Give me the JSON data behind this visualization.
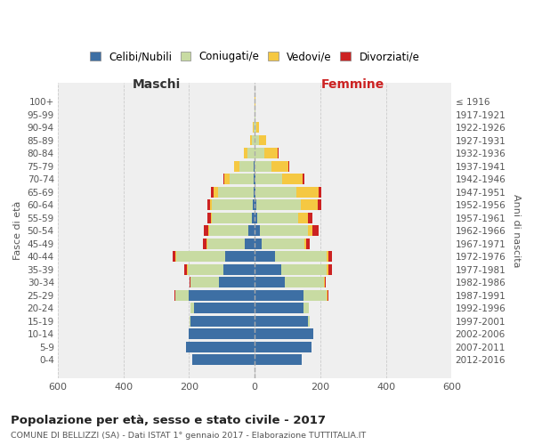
{
  "age_groups": [
    "0-4",
    "5-9",
    "10-14",
    "15-19",
    "20-24",
    "25-29",
    "30-34",
    "35-39",
    "40-44",
    "45-49",
    "50-54",
    "55-59",
    "60-64",
    "65-69",
    "70-74",
    "75-79",
    "80-84",
    "85-89",
    "90-94",
    "95-99",
    "100+"
  ],
  "birth_years": [
    "2012-2016",
    "2007-2011",
    "2002-2006",
    "1997-2001",
    "1992-1996",
    "1987-1991",
    "1982-1986",
    "1977-1981",
    "1972-1976",
    "1967-1971",
    "1962-1966",
    "1957-1961",
    "1952-1956",
    "1947-1951",
    "1942-1946",
    "1937-1941",
    "1932-1936",
    "1927-1931",
    "1922-1926",
    "1917-1921",
    "≤ 1916"
  ],
  "male": {
    "celibe": [
      190,
      210,
      200,
      195,
      185,
      200,
      110,
      95,
      90,
      30,
      20,
      10,
      5,
      3,
      2,
      2,
      0,
      0,
      0,
      0,
      0
    ],
    "coniugato": [
      0,
      0,
      0,
      3,
      12,
      42,
      85,
      110,
      150,
      115,
      120,
      120,
      125,
      110,
      75,
      45,
      22,
      10,
      4,
      1,
      0
    ],
    "vedovo": [
      0,
      0,
      0,
      0,
      0,
      1,
      1,
      2,
      2,
      2,
      2,
      3,
      5,
      12,
      16,
      15,
      10,
      5,
      2,
      0,
      0
    ],
    "divorziato": [
      0,
      0,
      0,
      0,
      0,
      1,
      2,
      8,
      8,
      10,
      12,
      10,
      8,
      8,
      2,
      0,
      0,
      0,
      0,
      0,
      0
    ]
  },
  "female": {
    "nubile": [
      142,
      172,
      178,
      162,
      148,
      148,
      92,
      82,
      62,
      22,
      16,
      8,
      5,
      3,
      2,
      0,
      0,
      0,
      0,
      0,
      0
    ],
    "coniugata": [
      0,
      0,
      0,
      5,
      16,
      72,
      118,
      138,
      158,
      128,
      145,
      125,
      135,
      125,
      82,
      50,
      28,
      12,
      5,
      1,
      0
    ],
    "vedova": [
      0,
      0,
      0,
      0,
      1,
      2,
      3,
      5,
      5,
      8,
      15,
      28,
      52,
      68,
      62,
      52,
      42,
      22,
      8,
      2,
      1
    ],
    "divorziata": [
      0,
      0,
      0,
      0,
      1,
      2,
      3,
      10,
      10,
      10,
      20,
      16,
      10,
      8,
      5,
      3,
      2,
      0,
      0,
      0,
      0
    ]
  },
  "colors": {
    "celibe": "#3d6fa4",
    "coniugato": "#c8dba2",
    "vedovo": "#f5c842",
    "divorziato": "#cc2222"
  },
  "legend_labels": [
    "Celibi/Nubili",
    "Coniugati/e",
    "Vedovi/e",
    "Divorziati/e"
  ],
  "title": "Popolazione per età, sesso e stato civile - 2017",
  "subtitle": "COMUNE DI BELLIZZI (SA) - Dati ISTAT 1° gennaio 2017 - Elaborazione TUTTITALIA.IT",
  "ylabel_left": "Fasce di età",
  "ylabel_right": "Anni di nascita",
  "xlabel_male": "Maschi",
  "xlabel_female": "Femmine",
  "xlim": 600,
  "bg_color": "#ffffff",
  "plot_bg": "#efefef",
  "grid_color": "#cccccc"
}
